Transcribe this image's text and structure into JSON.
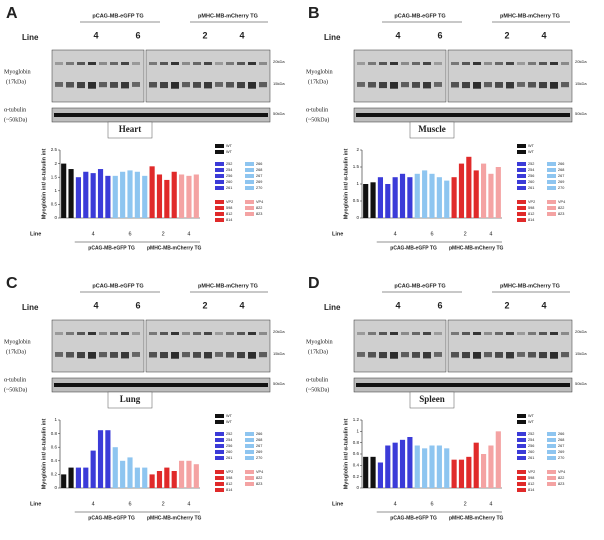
{
  "panels": [
    {
      "letter": "A",
      "line": "Line",
      "tg1": "pCAG-MB-eGFP TG",
      "tg2": "pMHC-MB-mCherry TG",
      "groups": [
        "4",
        "6",
        "2",
        "4"
      ],
      "myo": "Myoglobin",
      "myo_kda": "(17kDa)",
      "tub": "α-tubulin",
      "tub_kda": "(~50kDa)",
      "m1": "20kDa",
      "m2": "15kDa",
      "m3": "50kDa"
    },
    {
      "letter": "B",
      "line": "Line",
      "tg1": "pCAG-MB-eGFP TG",
      "tg2": "pMHC-MB-mCherry TG",
      "groups": [
        "4",
        "6",
        "2",
        "4"
      ],
      "myo": "Myoglobin",
      "myo_kda": "(17kDa)",
      "tub": "α-tubulin",
      "tub_kda": "(~50kDa)",
      "m1": "20kDa",
      "m2": "15kDa",
      "m3": "50kDa"
    },
    {
      "letter": "C",
      "line": "Line",
      "tg1": "pCAG-MB-eGFP TG",
      "tg2": "pMHC-MB-mCherry TG",
      "groups": [
        "4",
        "6",
        "2",
        "4"
      ],
      "myo": "Myoglobin",
      "myo_kda": "(17kDa)",
      "tub": "α-tubulin",
      "tub_kda": "(~50kDa)",
      "m1": "20kDa",
      "m2": "15kDa",
      "m3": "50kDa"
    },
    {
      "letter": "D",
      "line": "Line",
      "tg1": "pCAG-MB-eGFP TG",
      "tg2": "pMHC-MB-mCherry TG",
      "groups": [
        "4",
        "6",
        "2",
        "4"
      ],
      "myo": "Myoglobin",
      "myo_kda": "(17kDa)",
      "tub": "α-tubulin",
      "tub_kda": "(~50kDa)",
      "m1": "20kDa",
      "m2": "15kDa",
      "m3": "50kDa"
    }
  ],
  "chart_data": [
    {
      "type": "bar",
      "title": "Heart",
      "ylabel": "Myoglobin int/ α-tubulin int",
      "xlabel": "Line",
      "tg1": "pCAG-MB-eGFP TG",
      "tg2": "pMHC-MB-mCherry TG",
      "groups": [
        "4",
        "6",
        "2",
        "4"
      ],
      "categories": [
        "WT",
        "WT",
        "252",
        "254",
        "256",
        "260",
        "261",
        "266",
        "268",
        "267",
        "269",
        "270",
        "VP2",
        "598",
        "812",
        "814",
        "VP4",
        "822",
        "823"
      ],
      "colors": [
        "#111111",
        "#111111",
        "#3b3bd8",
        "#3b3bd8",
        "#3b3bd8",
        "#3b3bd8",
        "#3b3bd8",
        "#8ec5f0",
        "#8ec5f0",
        "#8ec5f0",
        "#8ec5f0",
        "#8ec5f0",
        "#e02a2a",
        "#e02a2a",
        "#e02a2a",
        "#e02a2a",
        "#f4a3a3",
        "#f4a3a3",
        "#f4a3a3"
      ],
      "values": [
        2.0,
        1.8,
        1.5,
        1.7,
        1.65,
        1.8,
        1.55,
        1.55,
        1.7,
        1.75,
        1.7,
        1.55,
        1.9,
        1.6,
        1.4,
        1.7,
        1.6,
        1.55,
        1.6
      ],
      "ylim": [
        0,
        2.5
      ],
      "yticks": [
        0,
        0.5,
        1,
        1.5,
        2,
        2.5
      ]
    },
    {
      "type": "bar",
      "title": "Muscle",
      "ylabel": "Myoglobin int/ α-tubulin int",
      "xlabel": "Line",
      "tg1": "pCAG-MB-eGFP TG",
      "tg2": "pMHC-MB-mCherry TG",
      "groups": [
        "4",
        "6",
        "2",
        "4"
      ],
      "categories": [
        "WT",
        "WT",
        "252",
        "254",
        "256",
        "260",
        "261",
        "266",
        "268",
        "267",
        "269",
        "270",
        "VP2",
        "598",
        "812",
        "814",
        "VP4",
        "822",
        "823"
      ],
      "colors": [
        "#111111",
        "#111111",
        "#3b3bd8",
        "#3b3bd8",
        "#3b3bd8",
        "#3b3bd8",
        "#3b3bd8",
        "#8ec5f0",
        "#8ec5f0",
        "#8ec5f0",
        "#8ec5f0",
        "#8ec5f0",
        "#e02a2a",
        "#e02a2a",
        "#e02a2a",
        "#e02a2a",
        "#f4a3a3",
        "#f4a3a3",
        "#f4a3a3"
      ],
      "values": [
        1.0,
        1.05,
        1.2,
        1.0,
        1.2,
        1.3,
        1.2,
        1.3,
        1.4,
        1.3,
        1.2,
        1.1,
        1.2,
        1.6,
        1.8,
        1.4,
        1.6,
        1.3,
        1.5
      ],
      "ylim": [
        0,
        2
      ],
      "yticks": [
        0,
        0.5,
        1,
        1.5,
        2
      ]
    },
    {
      "type": "bar",
      "title": "Lung",
      "ylabel": "Myoglobin int/ α-tubulin int",
      "xlabel": "Line",
      "tg1": "pCAG-MB-eGFP TG",
      "tg2": "pMHC-MB-mCherry TG",
      "groups": [
        "4",
        "6",
        "2",
        "4"
      ],
      "categories": [
        "WT",
        "WT",
        "252",
        "254",
        "256",
        "260",
        "261",
        "266",
        "268",
        "267",
        "269",
        "270",
        "VP2",
        "598",
        "812",
        "814",
        "VP4",
        "822",
        "823"
      ],
      "colors": [
        "#111111",
        "#111111",
        "#3b3bd8",
        "#3b3bd8",
        "#3b3bd8",
        "#3b3bd8",
        "#3b3bd8",
        "#8ec5f0",
        "#8ec5f0",
        "#8ec5f0",
        "#8ec5f0",
        "#8ec5f0",
        "#e02a2a",
        "#e02a2a",
        "#e02a2a",
        "#e02a2a",
        "#f4a3a3",
        "#f4a3a3",
        "#f4a3a3"
      ],
      "values": [
        0.2,
        0.3,
        0.3,
        0.3,
        0.55,
        0.85,
        0.85,
        0.6,
        0.4,
        0.45,
        0.3,
        0.3,
        0.2,
        0.25,
        0.3,
        0.25,
        0.4,
        0.4,
        0.35
      ],
      "ylim": [
        0,
        1
      ],
      "yticks": [
        0,
        0.2,
        0.4,
        0.6,
        0.8,
        1
      ]
    },
    {
      "type": "bar",
      "title": "Spleen",
      "ylabel": "Myoglobin int/ α-tubulin int",
      "xlabel": "Line",
      "tg1": "pCAG-MB-eGFP TG",
      "tg2": "pMHC-MB-mCherry TG",
      "groups": [
        "4",
        "6",
        "2",
        "4"
      ],
      "categories": [
        "WT",
        "WT",
        "252",
        "254",
        "256",
        "260",
        "261",
        "266",
        "268",
        "267",
        "269",
        "270",
        "VP2",
        "598",
        "812",
        "814",
        "VP4",
        "822",
        "823"
      ],
      "colors": [
        "#111111",
        "#111111",
        "#3b3bd8",
        "#3b3bd8",
        "#3b3bd8",
        "#3b3bd8",
        "#3b3bd8",
        "#8ec5f0",
        "#8ec5f0",
        "#8ec5f0",
        "#8ec5f0",
        "#8ec5f0",
        "#e02a2a",
        "#e02a2a",
        "#e02a2a",
        "#e02a2a",
        "#f4a3a3",
        "#f4a3a3",
        "#f4a3a3"
      ],
      "values": [
        0.55,
        0.55,
        0.45,
        0.75,
        0.8,
        0.85,
        0.9,
        0.75,
        0.7,
        0.75,
        0.75,
        0.7,
        0.5,
        0.5,
        0.55,
        0.8,
        0.6,
        0.75,
        1.0
      ],
      "ylim": [
        0,
        1.2
      ],
      "yticks": [
        0,
        0.2,
        0.4,
        0.6,
        0.8,
        1,
        1.2
      ]
    }
  ]
}
